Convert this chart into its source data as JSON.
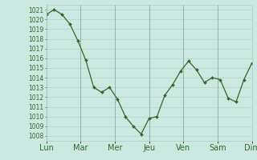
{
  "x_labels": [
    "Lun",
    "Mar",
    "Mer",
    "Jeu",
    "Ven",
    "Sam",
    "Dim"
  ],
  "x_ticks": [
    0,
    4,
    8,
    12,
    16,
    20,
    24
  ],
  "y_values": [
    1020.5,
    1021.0,
    1020.5,
    1019.5,
    1017.8,
    1015.8,
    1013.0,
    1012.5,
    1013.0,
    1011.8,
    1010.0,
    1009.0,
    1008.2,
    1009.8,
    1010.0,
    1012.2,
    1013.3,
    1014.7,
    1015.7,
    1014.8,
    1013.5,
    1014.0,
    1013.8,
    1011.9,
    1011.5,
    1013.8,
    1015.5
  ],
  "ylim": [
    1007.5,
    1021.5
  ],
  "yticks": [
    1008,
    1009,
    1010,
    1011,
    1012,
    1013,
    1014,
    1015,
    1016,
    1017,
    1018,
    1019,
    1020,
    1021
  ],
  "line_color": "#2d6a2d",
  "marker_color": "#2d6a2d",
  "bg_color": "#cce8e0",
  "grid_color": "#aaccc4",
  "tick_label_color": "#2d6a2d",
  "tick_label_fontsize": 5.5,
  "xlabel_fontsize": 7.0
}
